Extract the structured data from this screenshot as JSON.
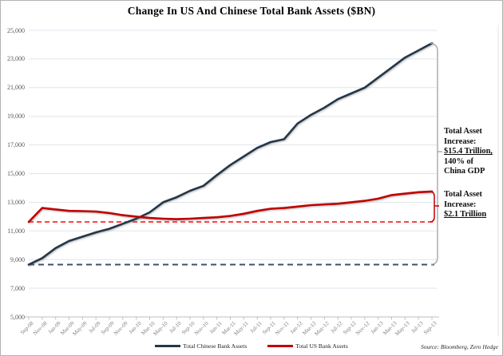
{
  "title": "Change In US And Chinese Total Bank Assets ($BN)",
  "source": "Source: Bloomberg, Zero Hedge",
  "colors": {
    "chinese_line": "#24364a",
    "chinese_dashed": "#3d5166",
    "us_line": "#c00000",
    "us_dashed": "#ff0000",
    "gridline": "#dfe5ec",
    "axis": "#bfbfbf",
    "bracket_gray": "#a0a0a0",
    "bracket_red": "#c00000"
  },
  "chart_data": {
    "type": "line",
    "title": "Change In US And Chinese Total Bank Assets ($BN)",
    "xlabel": "",
    "ylabel": "",
    "ylim": [
      5000,
      25000
    ],
    "ytick_step": 2000,
    "ytick_labels": [
      "25,000",
      "23,000",
      "21,000",
      "19,000",
      "17,000",
      "15,000",
      "13,000",
      "11,000",
      "9,000",
      "7,000",
      "5,000"
    ],
    "grid": true,
    "legend_position": "bottom",
    "categories": [
      "Sep-08",
      "Nov-08",
      "Jan-09",
      "Mar-09",
      "May-09",
      "Jul-09",
      "Sep-09",
      "Nov-09",
      "Jan-10",
      "Mar-10",
      "May-10",
      "Jul-10",
      "Sep-10",
      "Nov-10",
      "Jan-11",
      "Mar-11",
      "May-11",
      "Jul-11",
      "Sep-11",
      "Nov-11",
      "Jan-12",
      "Mar-12",
      "May-12",
      "Jul-12",
      "Sep-12",
      "Nov-12",
      "Jan-13",
      "Mar-13",
      "May-13",
      "Jul-13",
      "Sep-13"
    ],
    "series": [
      {
        "name": "Total Chinese Bank Assets",
        "key": "chinese",
        "color": "#24364a",
        "dashed_baseline_color": "#3d5166",
        "values": [
          8650,
          9100,
          9800,
          10300,
          10600,
          10900,
          11150,
          11500,
          11850,
          12300,
          13000,
          13350,
          13800,
          14150,
          14900,
          15600,
          16200,
          16800,
          17200,
          17400,
          18500,
          19100,
          19600,
          20200,
          20600,
          21000,
          21700,
          22400,
          23100,
          23600,
          24100
        ]
      },
      {
        "name": "Total US Bank Assets",
        "key": "us",
        "color": "#c00000",
        "dashed_baseline_color": "#ff0000",
        "values": [
          11630,
          12600,
          12500,
          12400,
          12380,
          12350,
          12250,
          12100,
          12000,
          11900,
          11850,
          11820,
          11850,
          11900,
          11950,
          12050,
          12200,
          12400,
          12550,
          12600,
          12700,
          12800,
          12850,
          12900,
          13000,
          13100,
          13250,
          13500,
          13600,
          13700,
          13750
        ]
      }
    ]
  },
  "annotations": [
    {
      "lines": [
        "Total Asset",
        "Increase:",
        "$15.4 Trillion,",
        "140% of",
        "China GDP"
      ],
      "underline_line_index": 2
    },
    {
      "lines": [
        "Total Asset",
        "Increase:",
        "$2.1 Trillion"
      ],
      "underline_line_index": 2
    }
  ],
  "legend": {
    "items": [
      {
        "label": "Total Chinese Bank Assets"
      },
      {
        "label": "Total US Bank Assets"
      }
    ]
  }
}
